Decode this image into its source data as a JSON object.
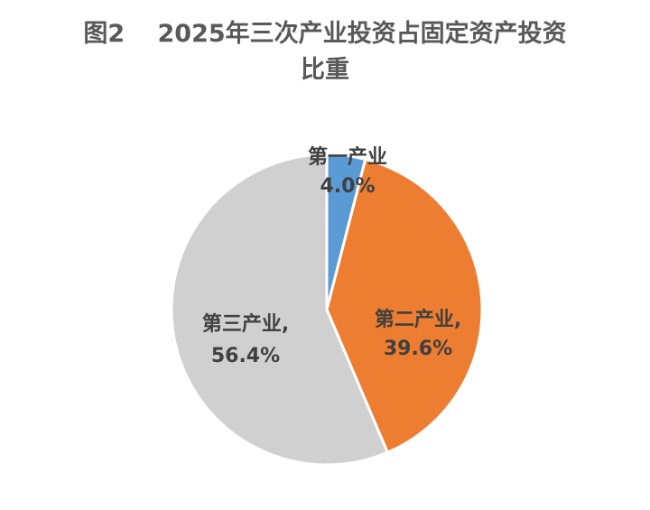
{
  "chart_data": {
    "type": "pie",
    "title": "图2　 2025年三次产业投资占固定资产投资比重",
    "categories": [
      "第一产业",
      "第二产业,",
      "第三产业,"
    ],
    "values": [
      4.0,
      39.6,
      56.4
    ],
    "value_labels": [
      "4.0%",
      "39.6%",
      "56.4%"
    ],
    "colors": [
      "#5b9bd5",
      "#ed7d31",
      "#d0d0d0"
    ]
  }
}
